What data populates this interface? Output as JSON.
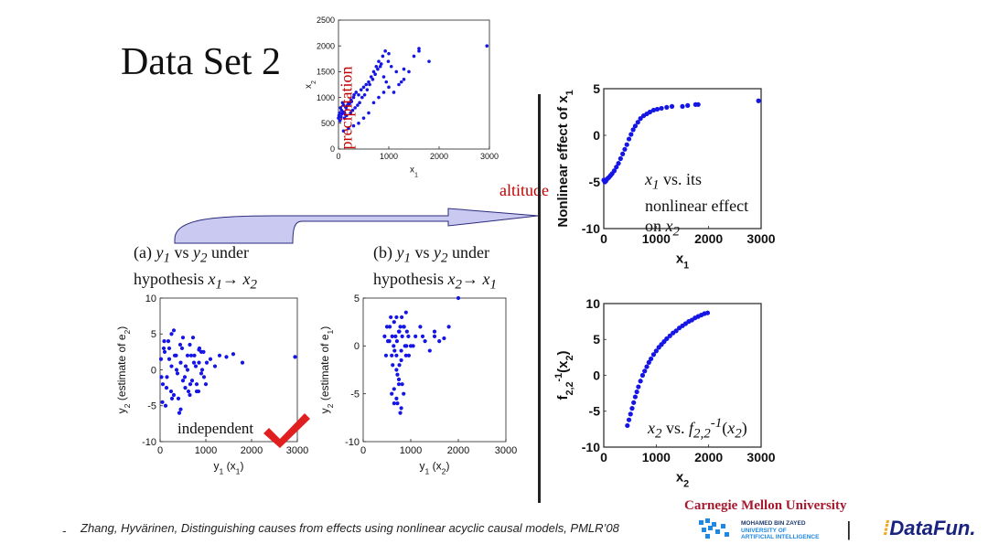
{
  "slide": {
    "title": "Data Set 2",
    "red_labels": {
      "precipitation": "precipitation",
      "altitude": "altitude"
    },
    "caption_a": {
      "line1_prefix": "(a) ",
      "y1": "y",
      "y1_sub": "1",
      "vs": " vs ",
      "y2": "y",
      "y2_sub": "2",
      "under": " under",
      "line2": "hypothesis ",
      "xa": "x",
      "xa_sub": "1",
      "arrow": "→ ",
      "xb": "x",
      "xb_sub": "2"
    },
    "caption_b": {
      "line1_prefix": "(b) ",
      "y1": "y",
      "y1_sub": "1",
      "vs": " vs ",
      "y2": "y",
      "y2_sub": "2",
      "under": " under",
      "line2": "hypothesis ",
      "xa": "x",
      "xa_sub": "2",
      "arrow": "→ ",
      "xb": "x",
      "xb_sub": "1"
    },
    "independent_label": "independent",
    "note_x1": {
      "x": "x",
      "sub": "1",
      "l1": " vs. its",
      "l2": "nonlinear effect",
      "l3a": "on ",
      "l3x": "x",
      "l3sub": "2"
    },
    "note_x2": {
      "x": "x",
      "sub": "2",
      "vs": " vs. ",
      "f": "f",
      "fsub": "2,2",
      "fsup": "-1",
      "paren_l": "(",
      "px": "x",
      "psub": "2",
      "paren_r": ")"
    },
    "citation": "Zhang, Hyvärinen, Distinguishing causes from effects using nonlinear acyclic causal models, PMLR’08",
    "bullet_dash": "-",
    "logos": {
      "cmu": "Carnegie Mellon University",
      "mbzuai_l1": "MOHAMED BIN ZAYED",
      "mbzuai_l2": "UNIVERSITY OF",
      "mbzuai_l3": "ARTIFICIAL INTELLIGENCE",
      "separator": "|",
      "datafun": "DataFun."
    },
    "colors": {
      "points": "#1515e6",
      "red": "#c00000",
      "check": "#e02020",
      "arrow_fill": "#c9c9f2"
    }
  },
  "chart_data": [
    {
      "type": "scatter",
      "id": "top",
      "title": "",
      "xlabel": "x",
      "xlabel_sub": "1",
      "ylabel": "x",
      "ylabel_sub": "2",
      "xlim": [
        0,
        3000
      ],
      "ylim": [
        0,
        2500
      ],
      "xticks": [
        "0",
        "1000",
        "2000",
        "3000"
      ],
      "yticks": [
        "0",
        "500",
        "1000",
        "1500",
        "2000",
        "2500"
      ],
      "xticks_v": [
        0,
        1000,
        2000,
        3000
      ],
      "yticks_v": [
        0,
        500,
        1000,
        1500,
        2000,
        2500
      ],
      "x": [
        0,
        20,
        40,
        10,
        60,
        80,
        100,
        120,
        30,
        50,
        70,
        90,
        150,
        200,
        250,
        300,
        180,
        220,
        260,
        310,
        350,
        400,
        450,
        500,
        550,
        600,
        650,
        700,
        750,
        800,
        850,
        900,
        950,
        1000,
        1100,
        1200,
        1300,
        1400,
        1500,
        1600,
        1800,
        2950,
        120,
        160,
        240,
        280,
        330,
        380,
        420,
        470,
        520,
        570,
        620,
        680,
        730,
        780,
        830,
        880,
        930,
        990,
        1050,
        1150,
        1250,
        700,
        800,
        900,
        600,
        500,
        400,
        300,
        200,
        100,
        1600,
        1300,
        1000
      ],
      "y": [
        600,
        700,
        800,
        650,
        750,
        900,
        850,
        700,
        550,
        620,
        680,
        720,
        800,
        900,
        950,
        1000,
        850,
        880,
        920,
        1050,
        1100,
        1050,
        1150,
        1200,
        1250,
        1300,
        1400,
        1500,
        1600,
        1700,
        1650,
        1400,
        1300,
        1200,
        1100,
        1250,
        1350,
        1500,
        1800,
        1950,
        1700,
        2000,
        600,
        650,
        700,
        750,
        800,
        850,
        900,
        1000,
        1050,
        1150,
        1250,
        1350,
        1450,
        1550,
        1600,
        1800,
        1900,
        1700,
        1600,
        1500,
        1300,
        900,
        1000,
        1100,
        700,
        600,
        500,
        450,
        400,
        350,
        1900,
        1550,
        1850
      ]
    },
    {
      "type": "scatter",
      "id": "a",
      "xlabel": "y",
      "xlabel_sub": "1",
      "xlabel_tail": " (x",
      "xlabel_tail_sub": "1",
      "xlabel_end": ")",
      "ylabel": "y",
      "ylabel_sub": "2",
      "ylabel_tail": " (estimate of e",
      "ylabel_tail_sub": "2",
      "ylabel_end": ")",
      "xlim": [
        0,
        3000
      ],
      "ylim": [
        -10,
        10
      ],
      "xticks": [
        "0",
        "1000",
        "2000",
        "3000"
      ],
      "yticks": [
        "-10",
        "-5",
        "0",
        "5",
        "10"
      ],
      "xticks_v": [
        0,
        1000,
        2000,
        3000
      ],
      "yticks_v": [
        -10,
        -5,
        0,
        5,
        10
      ],
      "x": [
        20,
        60,
        100,
        150,
        200,
        250,
        300,
        350,
        400,
        450,
        500,
        550,
        600,
        650,
        700,
        750,
        800,
        850,
        900,
        950,
        1000,
        1100,
        1200,
        1300,
        1450,
        1600,
        1800,
        2950,
        50,
        120,
        180,
        240,
        300,
        360,
        420,
        480,
        540,
        600,
        660,
        720,
        780,
        840,
        900,
        960,
        1020,
        80,
        140,
        200,
        260,
        320,
        380,
        440,
        500,
        560,
        620,
        680,
        740,
        800,
        860,
        920,
        30,
        90,
        250,
        450,
        650,
        850
      ],
      "y": [
        1.5,
        -2,
        2.5,
        -1,
        3,
        0.5,
        -3.5,
        2,
        -4,
        1,
        4.5,
        -2.5,
        0,
        3.5,
        -1.5,
        2,
        -3,
        1,
        -0.5,
        2.5,
        -2,
        1.5,
        0.5,
        2,
        1.8,
        2.2,
        1,
        1.8,
        -4.5,
        -5,
        4,
        -3,
        5.5,
        0,
        -6,
        3,
        -1,
        2,
        -2,
        4.5,
        0.5,
        -3,
        2.5,
        -1,
        1,
        3,
        -2.5,
        1.5,
        -4,
        2,
        -0.5,
        3.5,
        -1.5,
        0.5,
        -3,
        2,
        1,
        -2,
        3,
        0,
        -1,
        4,
        5,
        -5.5,
        -3.5,
        2.8
      ]
    },
    {
      "type": "scatter",
      "id": "b",
      "xlabel": "y",
      "xlabel_sub": "1",
      "xlabel_tail": " (x",
      "xlabel_tail_sub": "2",
      "xlabel_end": ")",
      "ylabel": "y",
      "ylabel_sub": "2",
      "ylabel_tail": " (estimate of e",
      "ylabel_tail_sub": "1",
      "ylabel_end": ")",
      "xlim": [
        0,
        3000
      ],
      "ylim": [
        -10,
        5
      ],
      "xticks": [
        "0",
        "1000",
        "2000",
        "3000"
      ],
      "yticks": [
        "-10",
        "-5",
        "0",
        "5"
      ],
      "xticks_v": [
        0,
        1000,
        2000,
        3000
      ],
      "yticks_v": [
        -10,
        -5,
        0,
        5
      ],
      "x": [
        450,
        500,
        550,
        600,
        650,
        700,
        750,
        800,
        850,
        900,
        950,
        1000,
        1100,
        1200,
        1300,
        1400,
        1500,
        1600,
        1800,
        2000,
        480,
        520,
        580,
        620,
        680,
        720,
        780,
        820,
        880,
        920,
        600,
        650,
        700,
        750,
        800,
        850,
        700,
        750,
        800,
        650,
        720,
        780,
        640,
        700,
        760,
        820,
        900,
        1050,
        1250,
        1500,
        1700,
        560,
        610,
        660,
        710,
        760,
        810,
        860,
        910,
        960
      ],
      "y": [
        1,
        2,
        0.5,
        -1,
        2.5,
        3,
        1.5,
        -0.5,
        2,
        3.5,
        1,
        0,
        1,
        2,
        0.5,
        -0.5,
        1,
        0.5,
        2,
        5,
        -1,
        0.5,
        3,
        -2,
        1,
        -3,
        2,
        -4,
        0,
        1.5,
        -5,
        -6,
        -5.5,
        -4,
        -6.5,
        -5,
        -2.5,
        -3.5,
        -1.5,
        -4.5,
        -6,
        -7,
        0,
        -1,
        -2,
        1,
        -1,
        0,
        1,
        1.5,
        0.8,
        2,
        1,
        -0.5,
        0.5,
        1.5,
        3,
        2,
        0,
        -1
      ]
    },
    {
      "type": "scatter",
      "id": "r1",
      "xlabel": "x",
      "xlabel_sub": "1",
      "ylabel": "Nonlinear effect of x",
      "ylabel_sub": "1",
      "xlim": [
        0,
        3000
      ],
      "ylim": [
        -10,
        5
      ],
      "xticks": [
        "0",
        "1000",
        "2000",
        "3000"
      ],
      "yticks": [
        "-10",
        "-5",
        "0",
        "5"
      ],
      "xticks_v": [
        0,
        1000,
        2000,
        3000
      ],
      "yticks_v": [
        -10,
        -5,
        0,
        5
      ],
      "x": [
        0,
        20,
        40,
        60,
        80,
        100,
        130,
        160,
        200,
        240,
        280,
        320,
        360,
        400,
        440,
        480,
        520,
        560,
        600,
        650,
        700,
        760,
        820,
        880,
        950,
        1020,
        1100,
        1200,
        1300,
        1500,
        1600,
        1750,
        1800,
        2950
      ],
      "y": [
        -4.8,
        -5,
        -4.9,
        -4.7,
        -4.6,
        -4.5,
        -4.3,
        -4.1,
        -3.8,
        -3.4,
        -3,
        -2.5,
        -2,
        -1.5,
        -1,
        -0.4,
        0.1,
        0.6,
        1,
        1.4,
        1.8,
        2.1,
        2.3,
        2.5,
        2.7,
        2.8,
        2.9,
        3,
        3.1,
        3.1,
        3.2,
        3.3,
        3.3,
        3.7
      ]
    },
    {
      "type": "scatter",
      "id": "r2",
      "xlabel": "x",
      "xlabel_sub": "2",
      "ylabel": "f",
      "ylabel_sub": "2,2",
      "ylabel_sup": "-1",
      "ylabel_tail": "(x",
      "ylabel_tail_sub": "2",
      "ylabel_end": ")",
      "xlim": [
        0,
        3000
      ],
      "ylim": [
        -10,
        10
      ],
      "xticks": [
        "0",
        "1000",
        "2000",
        "3000"
      ],
      "yticks": [
        "-10",
        "-5",
        "0",
        "5",
        "10"
      ],
      "xticks_v": [
        0,
        1000,
        2000,
        3000
      ],
      "yticks_v": [
        -10,
        -5,
        0,
        5,
        10
      ],
      "x": [
        450,
        480,
        510,
        540,
        570,
        600,
        630,
        660,
        700,
        740,
        780,
        820,
        860,
        900,
        950,
        1000,
        1050,
        1100,
        1150,
        1200,
        1260,
        1320,
        1380,
        1440,
        1500,
        1560,
        1620,
        1680,
        1740,
        1800,
        1860,
        1920,
        1980
      ],
      "y": [
        -7,
        -6.2,
        -5.4,
        -4.6,
        -3.8,
        -3,
        -2.3,
        -1.6,
        -0.8,
        0,
        0.6,
        1.2,
        1.8,
        2.3,
        2.9,
        3.4,
        3.9,
        4.3,
        4.7,
        5.1,
        5.5,
        5.9,
        6.2,
        6.6,
        6.9,
        7.2,
        7.5,
        7.7,
        8,
        8.2,
        8.4,
        8.6,
        8.7
      ]
    }
  ]
}
